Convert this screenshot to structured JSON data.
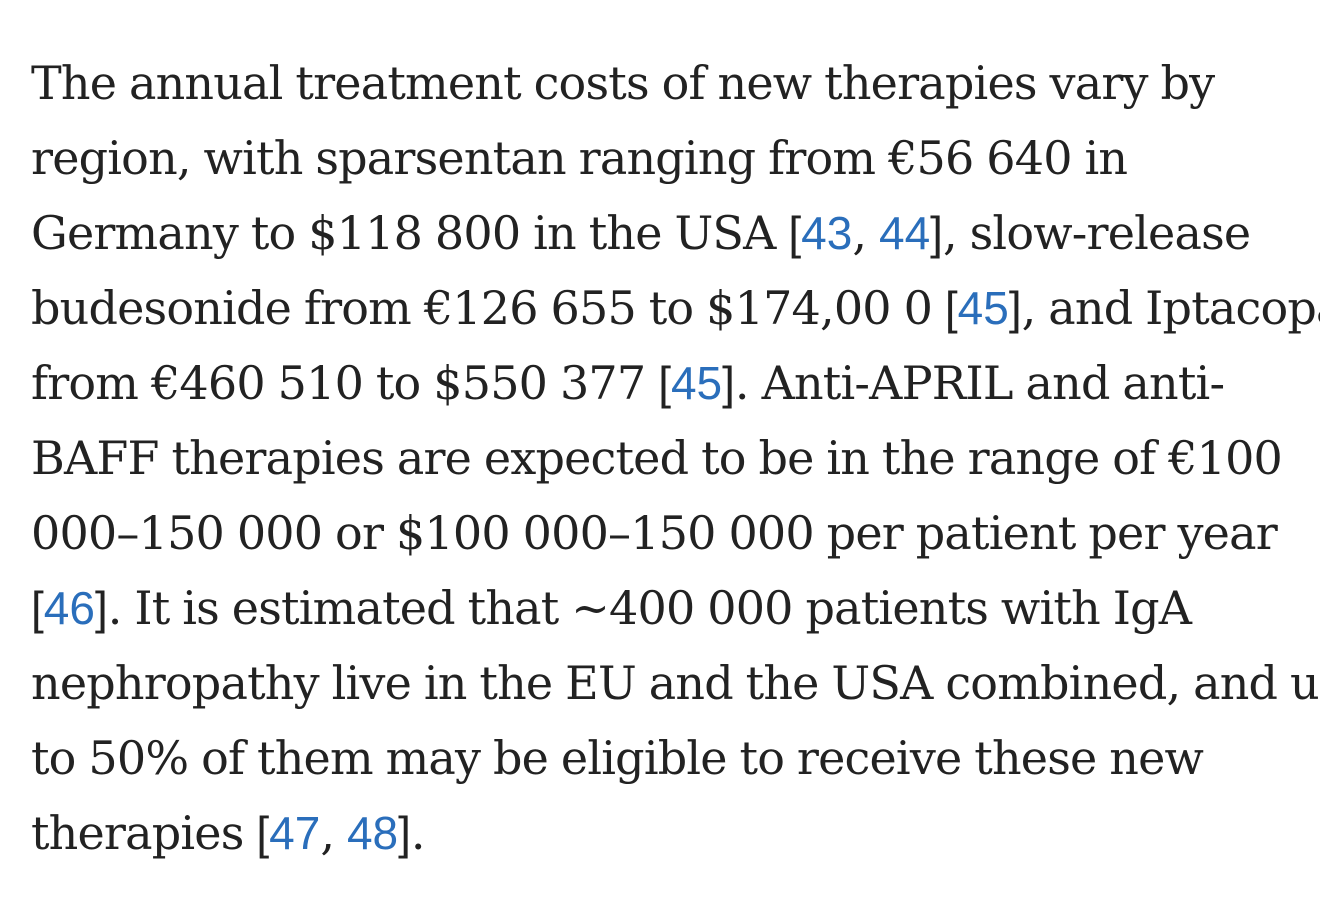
{
  "paragraph": {
    "l1": "The annual treatment costs of new therapies vary by",
    "l2": "region, with sparsentan ranging from €56 640 in",
    "l3a": "Germany to $118 800 in the USA ",
    "l3b": ", slow-release",
    "l4a": "budesonide from €126 655 to $174,00 0 ",
    "l4b": ", and Iptacopan",
    "l5a": "from €460 510 to $550 377 ",
    "l5b": ". Anti-APRIL and anti-",
    "l6": "BAFF therapies are expected to be in the range of €100",
    "l7": "000–150 000 or $100 000–150 000 per patient per year",
    "l8b": ". It is estimated that ~400 000 patients with IgA",
    "l9": "nephropathy live in the EU and the USA combined, and up",
    "l10": "to 50% of them may be eligible to receive these new",
    "l11a": "therapies ",
    "l11b": "."
  },
  "citations": {
    "c43": "43",
    "c44": "44",
    "c45a": "45",
    "c45b": "45",
    "c46": "46",
    "c47": "47",
    "c48": "48"
  },
  "colors": {
    "text": "#222222",
    "link": "#2a6ebb",
    "background": "#ffffff"
  }
}
